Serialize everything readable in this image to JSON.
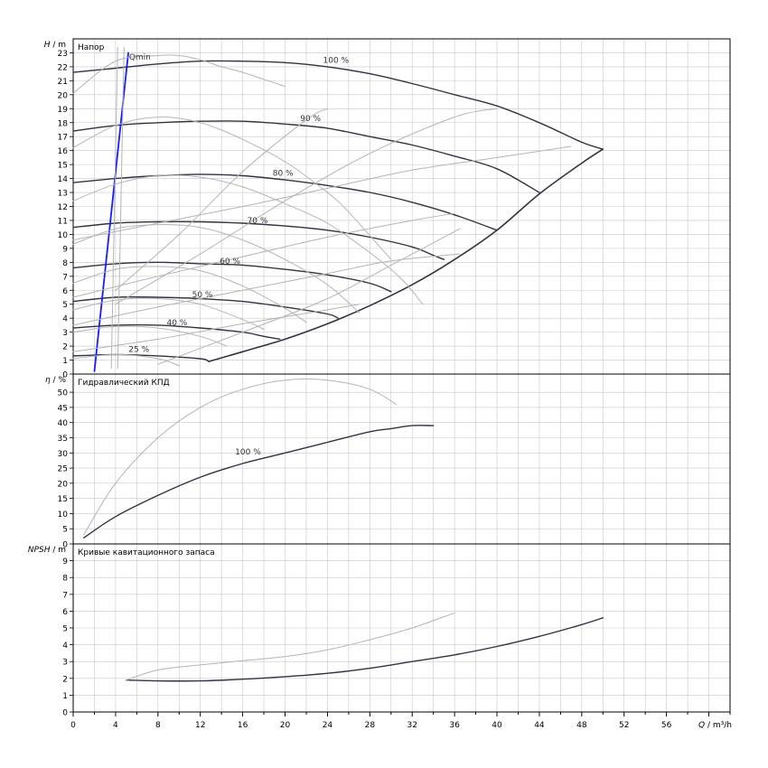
{
  "chart_data": [
    {
      "type": "line",
      "panel": "head",
      "title": "Напор",
      "ylabel_symbol": "H",
      "ylabel_unit": "/ m",
      "xlabel_symbol": "Q",
      "xlabel_unit": "/ m³/h",
      "xlim": [
        0,
        62
      ],
      "ylim": [
        0,
        24
      ],
      "y_ticks": [
        0,
        1,
        2,
        3,
        4,
        5,
        6,
        7,
        8,
        9,
        10,
        11,
        12,
        13,
        14,
        15,
        16,
        17,
        18,
        19,
        20,
        21,
        22,
        23
      ],
      "x_ticks": [
        0,
        4,
        8,
        12,
        16,
        20,
        24,
        28,
        32,
        36,
        40,
        44,
        48,
        52,
        56
      ],
      "grid": true,
      "series": [
        {
          "name": "100 %",
          "style": "dark",
          "x": [
            0,
            4,
            8,
            12,
            16,
            20,
            24,
            28,
            32,
            36,
            40,
            44,
            48,
            50
          ],
          "y": [
            21.6,
            21.9,
            22.2,
            22.4,
            22.4,
            22.3,
            22.0,
            21.5,
            20.8,
            20.0,
            19.2,
            18.0,
            16.6,
            16.1
          ]
        },
        {
          "name": "90 %",
          "style": "dark",
          "x": [
            0,
            4,
            8,
            12,
            16,
            20,
            24,
            28,
            32,
            36,
            40,
            44
          ],
          "y": [
            17.4,
            17.8,
            18.0,
            18.1,
            18.1,
            17.9,
            17.6,
            17.0,
            16.4,
            15.6,
            14.7,
            13.0
          ]
        },
        {
          "name": "80 %",
          "style": "dark",
          "x": [
            0,
            4,
            8,
            12,
            16,
            20,
            24,
            28,
            32,
            36,
            40
          ],
          "y": [
            13.7,
            14.0,
            14.2,
            14.3,
            14.2,
            13.9,
            13.5,
            13.0,
            12.3,
            11.4,
            10.3
          ]
        },
        {
          "name": "70 %",
          "style": "dark",
          "x": [
            0,
            4,
            8,
            12,
            16,
            20,
            24,
            28,
            32,
            34,
            35
          ],
          "y": [
            10.5,
            10.8,
            10.9,
            10.9,
            10.8,
            10.6,
            10.3,
            9.8,
            9.1,
            8.5,
            8.2
          ]
        },
        {
          "name": "60 %",
          "style": "dark",
          "x": [
            0,
            4,
            8,
            12,
            16,
            20,
            24,
            28,
            30
          ],
          "y": [
            7.6,
            7.9,
            8.0,
            7.9,
            7.8,
            7.5,
            7.1,
            6.5,
            5.9
          ]
        },
        {
          "name": "50 %",
          "style": "dark",
          "x": [
            0,
            4,
            8,
            12,
            16,
            20,
            24,
            25
          ],
          "y": [
            5.2,
            5.5,
            5.5,
            5.4,
            5.2,
            4.8,
            4.3,
            4.0
          ]
        },
        {
          "name": "40 %",
          "style": "dark",
          "x": [
            0,
            4,
            8,
            12,
            16,
            18,
            19.5
          ],
          "y": [
            3.3,
            3.5,
            3.5,
            3.3,
            3.0,
            2.7,
            2.5
          ]
        },
        {
          "name": "25 %",
          "style": "dark",
          "x": [
            0,
            4,
            8,
            12,
            12.8
          ],
          "y": [
            1.3,
            1.4,
            1.3,
            1.1,
            0.9
          ]
        },
        {
          "name": "",
          "style": "dark-max",
          "x": [
            12.8,
            16,
            20,
            24,
            28,
            32,
            36,
            40,
            44,
            48,
            50
          ],
          "y": [
            0.9,
            1.6,
            2.5,
            3.6,
            4.9,
            6.4,
            8.2,
            10.3,
            12.9,
            15.1,
            16.1
          ]
        },
        {
          "name": "Qmin",
          "style": "blue",
          "x": [
            2.0,
            5.2
          ],
          "y": [
            0.2,
            23.0
          ]
        },
        {
          "name": "",
          "style": "light",
          "x": [
            0,
            4,
            8,
            10,
            12,
            14,
            16,
            18,
            20
          ],
          "y": [
            20.1,
            22.4,
            22.8,
            22.8,
            22.5,
            22.0,
            21.6,
            21.1,
            20.6
          ]
        },
        {
          "name": "",
          "style": "light",
          "x": [
            0,
            4,
            8,
            12,
            16,
            20,
            24,
            26,
            30
          ],
          "y": [
            16.2,
            17.8,
            18.4,
            18.0,
            16.8,
            15.2,
            13.0,
            11.6,
            8.2
          ]
        },
        {
          "name": "",
          "style": "light",
          "x": [
            0,
            4,
            8,
            12,
            16,
            20,
            24,
            28,
            31,
            33
          ],
          "y": [
            12.4,
            13.6,
            14.2,
            14.1,
            13.4,
            12.2,
            10.8,
            8.7,
            6.8,
            5.0
          ]
        },
        {
          "name": "",
          "style": "light",
          "x": [
            0,
            4,
            8,
            12,
            16,
            20,
            24,
            27
          ],
          "y": [
            9.3,
            10.4,
            10.7,
            10.5,
            9.6,
            8.2,
            6.4,
            4.4
          ]
        },
        {
          "name": "",
          "style": "light",
          "x": [
            0,
            4,
            8,
            12,
            16,
            20,
            22
          ],
          "y": [
            6.5,
            7.5,
            7.7,
            7.4,
            6.3,
            4.7,
            3.7
          ]
        },
        {
          "name": "",
          "style": "light",
          "x": [
            0,
            4,
            8,
            12,
            16,
            18
          ],
          "y": [
            4.6,
            5.3,
            5.4,
            5.0,
            3.9,
            3.2
          ]
        },
        {
          "name": "",
          "style": "light",
          "x": [
            0,
            4,
            8,
            12,
            14.5
          ],
          "y": [
            3.0,
            3.4,
            3.3,
            2.7,
            2.0
          ]
        },
        {
          "name": "",
          "style": "light",
          "x": [
            0,
            4,
            8,
            10
          ],
          "y": [
            1.1,
            1.4,
            1.1,
            0.6
          ]
        },
        {
          "name": "",
          "style": "light",
          "x": [
            0,
            8,
            16,
            24,
            32,
            40,
            47
          ],
          "y": [
            9.6,
            10.8,
            12.0,
            13.3,
            14.6,
            15.5,
            16.3
          ]
        },
        {
          "name": "",
          "style": "light",
          "x": [
            0,
            8,
            16,
            24,
            32,
            36
          ],
          "y": [
            5.5,
            7.0,
            8.4,
            9.8,
            11.0,
            11.5
          ]
        },
        {
          "name": "",
          "style": "light",
          "x": [
            0,
            8,
            16,
            24,
            30,
            36.5
          ],
          "y": [
            3.5,
            4.8,
            6.0,
            7.2,
            8.1,
            8.6
          ]
        },
        {
          "name": "",
          "style": "light",
          "x": [
            0,
            8,
            16,
            24,
            27
          ],
          "y": [
            1.6,
            2.5,
            3.6,
            4.6,
            5.0
          ]
        },
        {
          "name": "",
          "style": "light",
          "x": [
            4,
            12,
            20,
            28,
            36,
            40
          ],
          "y": [
            5.0,
            8.6,
            12.4,
            15.8,
            18.4,
            19.0
          ]
        },
        {
          "name": "",
          "style": "light",
          "x": [
            4,
            10,
            16,
            22,
            24
          ],
          "y": [
            6.0,
            10.0,
            14.5,
            18.2,
            19.0
          ]
        },
        {
          "name": "",
          "style": "light",
          "x": [
            8,
            16,
            24,
            30,
            34,
            36.5
          ],
          "y": [
            0.7,
            3.0,
            5.4,
            7.8,
            9.4,
            10.4
          ]
        },
        {
          "name": "",
          "style": "light",
          "x": [
            3.6,
            4.2
          ],
          "y": [
            0.4,
            23.4
          ]
        },
        {
          "name": "",
          "style": "light",
          "x": [
            4.2,
            4.8
          ],
          "y": [
            0.4,
            23.4
          ]
        }
      ],
      "labels": [
        {
          "text": "100 %",
          "x": 24.8,
          "y": 22.3
        },
        {
          "text": "90 %",
          "x": 22.4,
          "y": 18.1
        },
        {
          "text": "80 %",
          "x": 19.8,
          "y": 14.2
        },
        {
          "text": "70 %",
          "x": 17.4,
          "y": 10.8
        },
        {
          "text": "60 %",
          "x": 14.8,
          "y": 7.9
        },
        {
          "text": "50 %",
          "x": 12.2,
          "y": 5.5
        },
        {
          "text": "40 %",
          "x": 9.8,
          "y": 3.5
        },
        {
          "text": "25 %",
          "x": 6.2,
          "y": 1.6
        },
        {
          "text": "Qmin",
          "x": 6.3,
          "y": 22.5
        }
      ]
    },
    {
      "type": "line",
      "panel": "efficiency",
      "title": "Гидравлический КПД",
      "ylabel_symbol": "η",
      "ylabel_unit": "/ %",
      "xlim": [
        0,
        62
      ],
      "ylim": [
        0,
        56
      ],
      "y_ticks": [
        0,
        5,
        10,
        15,
        20,
        25,
        30,
        35,
        40,
        45,
        50
      ],
      "grid": true,
      "series": [
        {
          "name": "100 %",
          "style": "dark",
          "x": [
            1,
            4,
            8,
            12,
            16,
            20,
            24,
            28,
            30,
            32,
            34
          ],
          "y": [
            2,
            9,
            16,
            22,
            26.5,
            30,
            33.5,
            37,
            38,
            39,
            39
          ]
        },
        {
          "name": "",
          "style": "light",
          "x": [
            1,
            4,
            8,
            12,
            16,
            20,
            24,
            28,
            30.5
          ],
          "y": [
            3,
            20,
            35,
            45,
            51,
            54,
            54,
            51,
            46
          ]
        }
      ],
      "labels": [
        {
          "text": "100 %",
          "x": 16.5,
          "y": 29.5
        }
      ]
    },
    {
      "type": "line",
      "panel": "npsh",
      "title": "Кривые кавитационного запаса",
      "ylabel_symbol": "NPSH",
      "ylabel_unit": "/ m",
      "xlim": [
        0,
        62
      ],
      "ylim": [
        0,
        10
      ],
      "y_ticks": [
        0,
        1,
        2,
        3,
        4,
        5,
        6,
        7,
        8,
        9
      ],
      "grid": true,
      "series": [
        {
          "name": "",
          "style": "dark",
          "x": [
            5,
            8,
            12,
            16,
            20,
            24,
            28,
            32,
            36,
            40,
            44,
            48,
            50
          ],
          "y": [
            1.9,
            1.85,
            1.85,
            1.95,
            2.1,
            2.3,
            2.6,
            3.0,
            3.4,
            3.9,
            4.5,
            5.2,
            5.6
          ]
        },
        {
          "name": "",
          "style": "light",
          "x": [
            5,
            8,
            12,
            16,
            20,
            24,
            28,
            32,
            36
          ],
          "y": [
            1.9,
            2.5,
            2.8,
            3.05,
            3.3,
            3.7,
            4.3,
            5.0,
            5.9
          ]
        }
      ],
      "labels": []
    }
  ]
}
